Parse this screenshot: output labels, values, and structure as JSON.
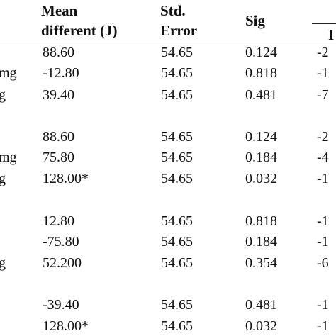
{
  "table": {
    "headers": {
      "mean_line1": "Mean",
      "mean_line2": "different (J)",
      "std_line1": "Std.",
      "std_line2": "Error",
      "sig": "Sig",
      "ci_partial": "I"
    },
    "rows": [
      {
        "group": "",
        "mean": "88.60",
        "std": "54.65",
        "sig": "0.124",
        "ci": "-2"
      },
      {
        "group": "mg",
        "mean": "-12.80",
        "std": "54.65",
        "sig": "0.818",
        "ci": "-1"
      },
      {
        "group": "g",
        "mean": "39.40",
        "std": "54.65",
        "sig": "0.481",
        "ci": "-7"
      },
      {
        "group": "",
        "mean": "88.60",
        "std": "54.65",
        "sig": "0.124",
        "ci": "-2"
      },
      {
        "group": "mg",
        "mean": "75.80",
        "std": "54.65",
        "sig": "0.184",
        "ci": "-4"
      },
      {
        "group": "g",
        "mean": "128.00*",
        "std": "54.65",
        "sig": "0.032",
        "ci": "-1"
      },
      {
        "group": "",
        "mean": "12.80",
        "std": "54.65",
        "sig": "0.818",
        "ci": "-1"
      },
      {
        "group": "",
        "mean": "-75.80",
        "std": "54.65",
        "sig": "0.184",
        "ci": "-1"
      },
      {
        "group": "g",
        "mean": "52.200",
        "std": "54.65",
        "sig": "0.354",
        "ci": "-6"
      },
      {
        "group": "",
        "mean": "-39.40",
        "std": "54.65",
        "sig": "0.481",
        "ci": "-1"
      },
      {
        "group": "",
        "mean": "128.00*",
        "std": "54.65",
        "sig": "0.032",
        "ci": "-1"
      }
    ]
  }
}
